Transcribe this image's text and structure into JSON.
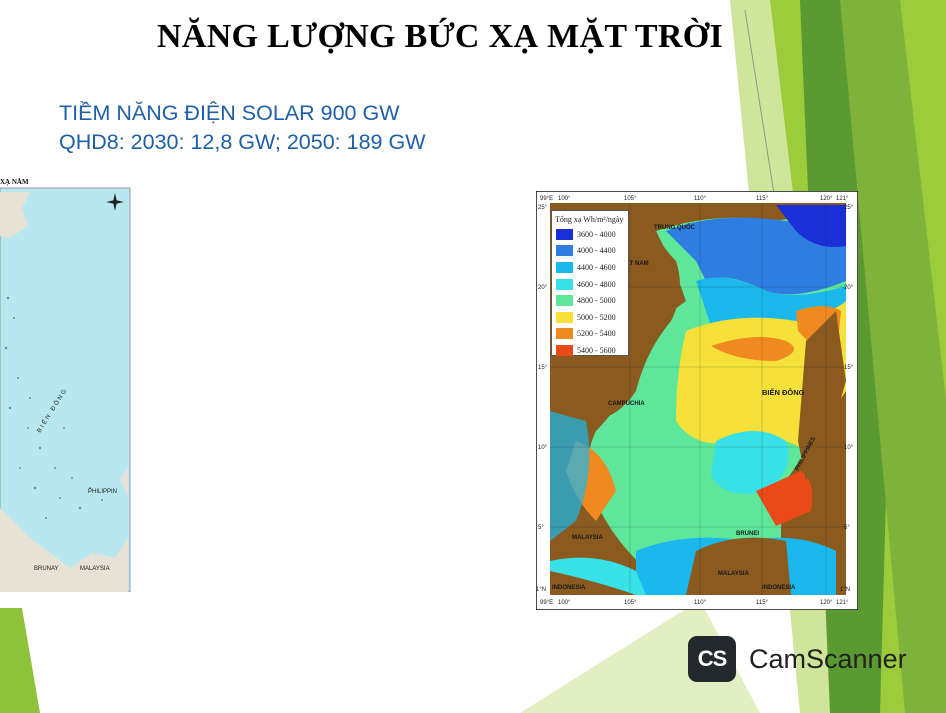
{
  "slide": {
    "title": "NĂNG LƯỢNG BỨC XẠ MẶT TRỜI",
    "subtitle_line1": "TIỀM NĂNG ĐIỆN SOLAR  900 GW",
    "subtitle_line2": "QHD8: 2030: 12,8 GW; 2050: 189 GW"
  },
  "left_map": {
    "title_fragment": "XẠ NĂM",
    "labels": [
      "BIỂN ĐÔNG",
      "PHILIPPIN",
      "BRUNAY",
      "MALAYSIA"
    ]
  },
  "right_map": {
    "legend_title": "Tổng xạ Wh/m²/ngày",
    "legend": [
      {
        "label": "3600 - 4000",
        "color": "#1a2fd6"
      },
      {
        "label": "4000 - 4400",
        "color": "#2e7de0"
      },
      {
        "label": "4400 - 4600",
        "color": "#1ab8ec"
      },
      {
        "label": "4600 - 4800",
        "color": "#38e0e8"
      },
      {
        "label": "4800 - 5000",
        "color": "#5ee79a"
      },
      {
        "label": "5000 - 5200",
        "color": "#f5e13a"
      },
      {
        "label": "5200 - 5400",
        "color": "#f08a20"
      },
      {
        "label": "5400 - 5600",
        "color": "#ea4a18"
      }
    ],
    "top_ticks": [
      "99°E",
      "100°",
      "105°",
      "110°",
      "115°",
      "120°",
      "121°"
    ],
    "bottom_ticks": [
      "99°E",
      "100°",
      "105°",
      "110°",
      "115°",
      "120°",
      "121°"
    ],
    "left_ticks": [
      "25°",
      "20°",
      "15°",
      "10°",
      "5°",
      "1°N"
    ],
    "right_ticks": [
      "25°",
      "20°",
      "15°",
      "10°",
      "5°",
      "1°N"
    ],
    "place_labels": [
      "TRUNG QUỐC",
      "VIỆT NAM",
      "CAMPUCHIA",
      "BIỂN ĐÔNG",
      "MALAYSIA",
      "BRUNEI",
      "MALAYSIA",
      "INDONESIA",
      "INDONESIA",
      "PHILIPPINES"
    ]
  },
  "watermark": {
    "logo_text": "CS",
    "brand": "CamScanner"
  },
  "colors": {
    "title": "#000000",
    "subtitle": "#1f5fa8",
    "green_light": "#9ccc3c",
    "green_mid": "#7fb23a",
    "green_dark": "#3f7f2a",
    "land": "#8a5a1f",
    "sea_left_map": "#b8e8ef"
  }
}
